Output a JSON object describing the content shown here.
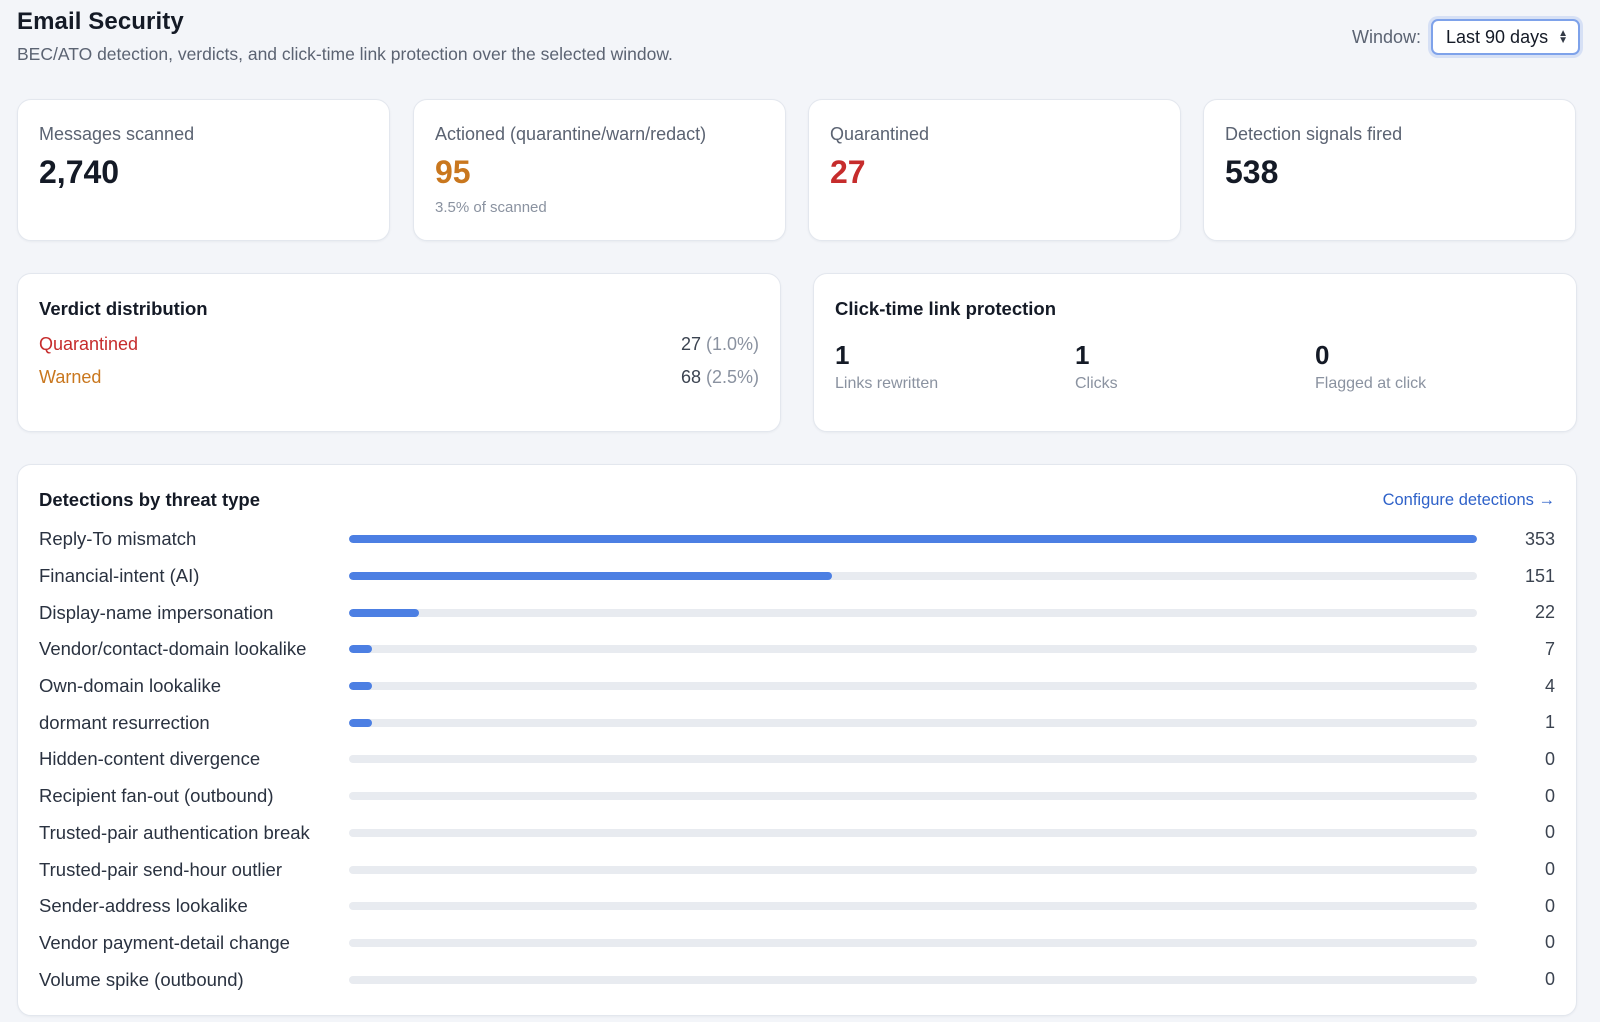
{
  "header": {
    "title": "Email Security",
    "subtitle": "BEC/ATO detection, verdicts, and click-time link protection over the selected window.",
    "window_label": "Window:",
    "window_value": "Last 90 days"
  },
  "kpis": [
    {
      "label": "Messages scanned",
      "value": "2,740",
      "sub": "",
      "tone": "default"
    },
    {
      "label": "Actioned (quarantine/warn/redact)",
      "value": "95",
      "sub": "3.5% of scanned",
      "tone": "orange"
    },
    {
      "label": "Quarantined",
      "value": "27",
      "sub": "",
      "tone": "red"
    },
    {
      "label": "Detection signals fired",
      "value": "538",
      "sub": "",
      "tone": "default"
    }
  ],
  "verdict": {
    "title": "Verdict distribution",
    "rows": [
      {
        "label": "Quarantined",
        "count": "27",
        "pct": "(1.0%)",
        "color": "#c62c2c"
      },
      {
        "label": "Warned",
        "count": "68",
        "pct": "(2.5%)",
        "color": "#c9771e"
      }
    ]
  },
  "click_time": {
    "title": "Click-time link protection",
    "stats": [
      {
        "value": "1",
        "label": "Links rewritten"
      },
      {
        "value": "1",
        "label": "Clicks"
      },
      {
        "value": "0",
        "label": "Flagged at click"
      }
    ]
  },
  "threats": {
    "title": "Detections by threat type",
    "configure_label": "Configure detections →",
    "items": [
      {
        "label": "Reply-To mismatch",
        "count": 353,
        "fill": 1.0
      },
      {
        "label": "Financial-intent (AI)",
        "count": 151,
        "fill": 0.428
      },
      {
        "label": "Display-name impersonation",
        "count": 22,
        "fill": 0.062
      },
      {
        "label": "Vendor/contact-domain lookalike",
        "count": 7,
        "fill": 0.02
      },
      {
        "label": "Own-domain lookalike",
        "count": 4,
        "fill": 0.02
      },
      {
        "label": "dormant resurrection",
        "count": 1,
        "fill": 0.02
      },
      {
        "label": "Hidden-content divergence",
        "count": 0,
        "fill": 0
      },
      {
        "label": "Recipient fan-out (outbound)",
        "count": 0,
        "fill": 0
      },
      {
        "label": "Trusted-pair authentication break",
        "count": 0,
        "fill": 0
      },
      {
        "label": "Trusted-pair send-hour outlier",
        "count": 0,
        "fill": 0
      },
      {
        "label": "Sender-address lookalike",
        "count": 0,
        "fill": 0
      },
      {
        "label": "Vendor payment-detail change",
        "count": 0,
        "fill": 0
      },
      {
        "label": "Volume spike (outbound)",
        "count": 0,
        "fill": 0
      }
    ]
  }
}
